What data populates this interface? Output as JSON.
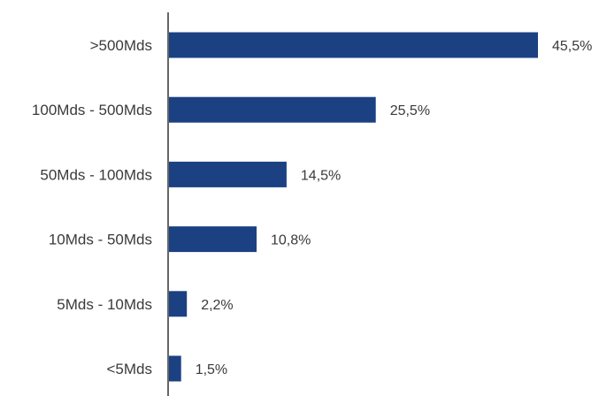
{
  "chart_data": {
    "type": "bar",
    "orientation": "horizontal",
    "categories": [
      ">500Mds",
      "100Mds - 500Mds",
      "50Mds - 100Mds",
      "10Mds - 50Mds",
      "5Mds - 10Mds",
      "<5Mds"
    ],
    "values": [
      45.5,
      25.5,
      14.5,
      10.8,
      2.2,
      1.5
    ],
    "value_labels": [
      "45,5%",
      "25,5%",
      "14,5%",
      "10,8%",
      "2,2%",
      "1,5%"
    ],
    "unit": "%",
    "xlim": [
      0,
      50
    ],
    "grid": false,
    "bar_color": "#1b4183",
    "axis_color": "#333333",
    "text_color": "#3a3a3a"
  }
}
